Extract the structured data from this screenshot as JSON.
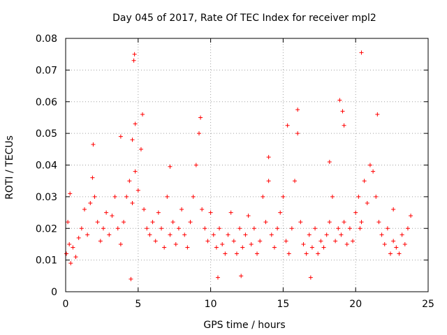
{
  "chart_data": {
    "type": "scatter",
    "title": "Day 045 of 2017, Rate Of TEC Index for receiver mpl2",
    "xlabel": "GPS time / hours",
    "ylabel": "ROTI / TECUs",
    "xlim": [
      0,
      25
    ],
    "ylim": [
      0,
      0.08
    ],
    "x_ticks": [
      0,
      5,
      10,
      15,
      20,
      25
    ],
    "x_tick_labels": [
      "0",
      "5",
      "10",
      "15",
      "20",
      "25"
    ],
    "y_ticks": [
      0,
      0.01,
      0.02,
      0.03,
      0.04,
      0.05,
      0.06,
      0.07,
      0.08
    ],
    "y_tick_labels": [
      "0",
      "0.01",
      "0.02",
      "0.03",
      "0.04",
      "0.05",
      "0.06",
      "0.07",
      "0.08"
    ],
    "grid": true,
    "marker": "+",
    "series": [
      {
        "name": "ROTI",
        "color": "#ff0000",
        "x": [
          0.05,
          0.15,
          0.25,
          0.35,
          0.5,
          0.7,
          0.9,
          1.1,
          1.3,
          1.5,
          1.7,
          1.85,
          2.0,
          2.2,
          2.4,
          2.6,
          2.8,
          3.0,
          3.2,
          3.4,
          3.6,
          3.8,
          4.0,
          4.2,
          4.4,
          4.6,
          4.8,
          5.0,
          5.2,
          5.4,
          5.6,
          5.8,
          6.0,
          6.2,
          6.4,
          6.6,
          6.8,
          7.0,
          7.2,
          7.4,
          7.6,
          7.8,
          8.0,
          8.2,
          8.4,
          8.6,
          8.8,
          9.0,
          9.2,
          9.4,
          9.6,
          9.8,
          10.0,
          10.2,
          10.4,
          10.6,
          10.8,
          11.0,
          11.2,
          11.4,
          11.6,
          11.8,
          12.0,
          12.2,
          12.4,
          12.6,
          12.8,
          13.0,
          13.2,
          13.4,
          13.6,
          13.8,
          14.0,
          14.2,
          14.4,
          14.6,
          14.8,
          15.0,
          15.2,
          15.4,
          15.6,
          15.8,
          16.0,
          16.2,
          16.4,
          16.6,
          16.8,
          17.0,
          17.2,
          17.4,
          17.6,
          17.8,
          18.0,
          18.2,
          18.4,
          18.6,
          18.8,
          19.0,
          19.2,
          19.4,
          19.6,
          19.8,
          20.0,
          20.2,
          20.4,
          20.6,
          20.8,
          21.0,
          21.2,
          21.4,
          21.6,
          21.8,
          22.0,
          22.2,
          22.4,
          22.6,
          22.8,
          23.0,
          23.2,
          23.4,
          23.6,
          23.8,
          4.7,
          4.75,
          20.4,
          18.9,
          19.2,
          19.1,
          16.0,
          15.3,
          21.5,
          5.3,
          9.3,
          4.8,
          1.9,
          14.0,
          18.2,
          0.3,
          3.8,
          4.6,
          7.2,
          4.5,
          10.5,
          16.9,
          12.1,
          22.6,
          20.3
        ],
        "y": [
          0.012,
          0.022,
          0.015,
          0.009,
          0.014,
          0.011,
          0.017,
          0.02,
          0.026,
          0.018,
          0.028,
          0.036,
          0.03,
          0.022,
          0.016,
          0.02,
          0.025,
          0.018,
          0.024,
          0.03,
          0.02,
          0.015,
          0.022,
          0.03,
          0.035,
          0.028,
          0.038,
          0.032,
          0.045,
          0.026,
          0.02,
          0.018,
          0.022,
          0.016,
          0.025,
          0.02,
          0.014,
          0.03,
          0.018,
          0.022,
          0.015,
          0.02,
          0.026,
          0.018,
          0.014,
          0.022,
          0.03,
          0.04,
          0.05,
          0.026,
          0.02,
          0.016,
          0.025,
          0.018,
          0.014,
          0.02,
          0.015,
          0.012,
          0.018,
          0.025,
          0.016,
          0.012,
          0.02,
          0.014,
          0.018,
          0.024,
          0.015,
          0.02,
          0.012,
          0.016,
          0.03,
          0.022,
          0.035,
          0.018,
          0.014,
          0.02,
          0.025,
          0.03,
          0.016,
          0.012,
          0.02,
          0.035,
          0.05,
          0.022,
          0.015,
          0.012,
          0.018,
          0.014,
          0.02,
          0.012,
          0.016,
          0.014,
          0.018,
          0.022,
          0.03,
          0.016,
          0.02,
          0.018,
          0.022,
          0.015,
          0.02,
          0.016,
          0.025,
          0.03,
          0.022,
          0.035,
          0.028,
          0.04,
          0.038,
          0.03,
          0.022,
          0.018,
          0.015,
          0.02,
          0.012,
          0.016,
          0.014,
          0.012,
          0.018,
          0.015,
          0.02,
          0.024,
          0.073,
          0.075,
          0.0755,
          0.0605,
          0.0525,
          0.057,
          0.0575,
          0.0525,
          0.056,
          0.056,
          0.055,
          0.053,
          0.0465,
          0.0425,
          0.041,
          0.031,
          0.049,
          0.048,
          0.0395,
          0.004,
          0.0045,
          0.0045,
          0.005,
          0.026,
          0.02
        ]
      }
    ]
  }
}
